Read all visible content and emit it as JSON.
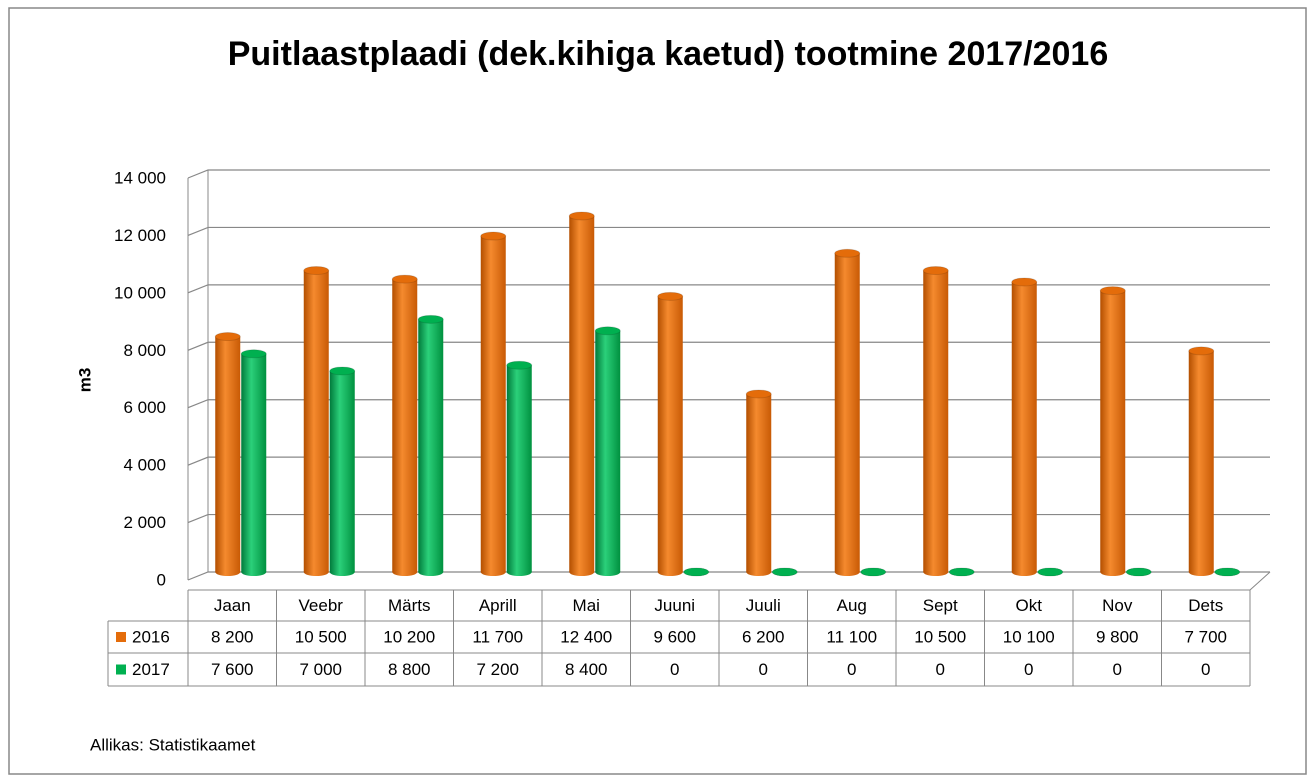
{
  "chart_data": {
    "type": "bar3d",
    "title": "Puitlaastplaadi (dek.kihiga kaetud) tootmine 2017/2016",
    "y_label": "m3",
    "source": "Allikas: Statistikaamet",
    "categories": [
      "Jaan",
      "Veebr",
      "Märts",
      "Aprill",
      "Mai",
      "Juuni",
      "Juuli",
      "Aug",
      "Sept",
      "Okt",
      "Nov",
      "Dets"
    ],
    "series": [
      {
        "name": "2016",
        "color": "#e46c0a",
        "values": [
          8200,
          10500,
          10200,
          11700,
          12400,
          9600,
          6200,
          11100,
          10500,
          10100,
          9800,
          7700
        ],
        "value_labels": [
          "8 200",
          "10 500",
          "10 200",
          "11 700",
          "12 400",
          "9 600",
          "6 200",
          "11 100",
          "10 500",
          "10 100",
          "9 800",
          "7 700"
        ]
      },
      {
        "name": "2017",
        "color": "#00b050",
        "values": [
          7600,
          7000,
          8800,
          7200,
          8400,
          0,
          0,
          0,
          0,
          0,
          0,
          0
        ],
        "value_labels": [
          "7 600",
          "7 000",
          "8 800",
          "7 200",
          "8 400",
          "0",
          "0",
          "0",
          "0",
          "0",
          "0",
          "0"
        ]
      }
    ],
    "ylim": [
      0,
      14000
    ],
    "yticks": [
      0,
      {
        "value": 2000,
        "label": "2 000"
      },
      {
        "value": 4000,
        "label": "4 000"
      },
      {
        "value": 6000,
        "label": "6 000"
      },
      {
        "value": 8000,
        "label": "8 000"
      },
      {
        "value": 10000,
        "label": "10 000"
      },
      {
        "value": 12000,
        "label": "12 000"
      },
      {
        "value": 14000,
        "label": "14 000"
      }
    ],
    "grid": true
  }
}
